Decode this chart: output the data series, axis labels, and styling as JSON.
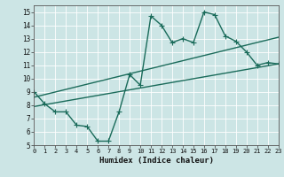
{
  "xlabel": "Humidex (Indice chaleur)",
  "xlim": [
    0,
    23
  ],
  "ylim": [
    5,
    15.5
  ],
  "yticks": [
    5,
    6,
    7,
    8,
    9,
    10,
    11,
    12,
    13,
    14,
    15
  ],
  "xticks": [
    0,
    1,
    2,
    3,
    4,
    5,
    6,
    7,
    8,
    9,
    10,
    11,
    12,
    13,
    14,
    15,
    16,
    17,
    18,
    19,
    20,
    21,
    22,
    23
  ],
  "bg_color": "#cce5e5",
  "grid_color": "#ffffff",
  "line_color": "#1a6b5a",
  "line1_x": [
    0,
    1,
    2,
    3,
    4,
    5,
    6,
    7,
    8,
    9,
    10,
    11,
    12,
    13,
    14,
    15,
    16,
    17,
    18,
    19,
    20,
    21,
    22,
    23
  ],
  "line1_y": [
    9.0,
    8.1,
    7.5,
    7.5,
    6.5,
    6.4,
    5.3,
    5.3,
    7.5,
    10.3,
    9.5,
    14.7,
    14.0,
    12.7,
    13.0,
    12.7,
    15.0,
    14.8,
    13.2,
    12.8,
    12.0,
    11.0,
    11.2,
    11.1
  ],
  "line2_x": [
    0,
    23
  ],
  "line2_y": [
    7.9,
    11.1
  ],
  "line3_x": [
    0,
    23
  ],
  "line3_y": [
    8.6,
    13.1
  ],
  "marker": "+",
  "markersize": 4,
  "linewidth": 1.0
}
